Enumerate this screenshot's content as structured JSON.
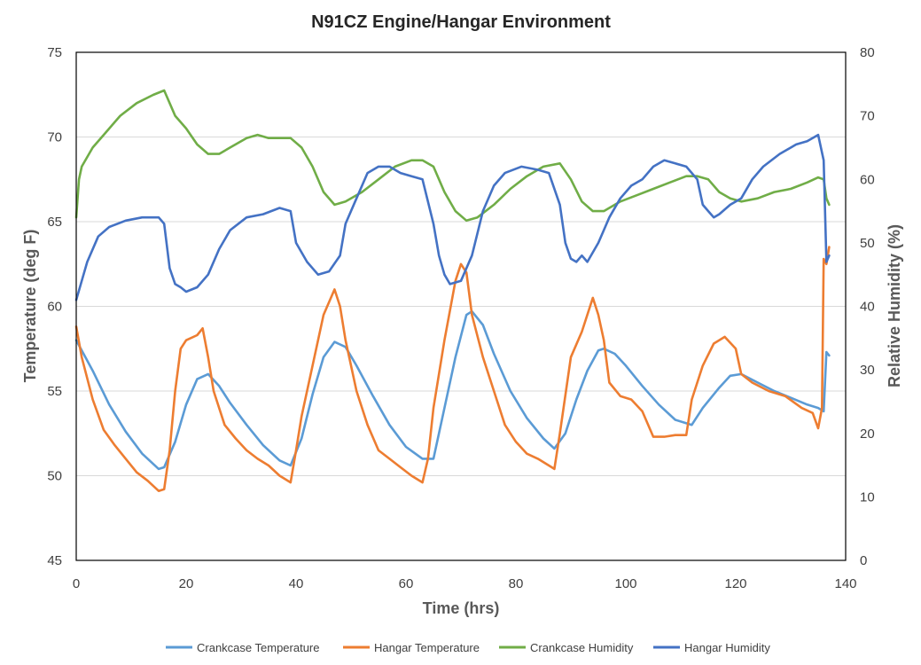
{
  "chart_data": {
    "type": "line",
    "title": "N91CZ Engine/Hangar Environment",
    "xlabel": "Time (hrs)",
    "ylabel_left": "Temperature (deg F)",
    "ylabel_right": "Relative Humidity (%)",
    "xlim": [
      0,
      140
    ],
    "ylim_left": [
      45,
      75
    ],
    "ylim_right": [
      0,
      80
    ],
    "xticks": [
      "0",
      "20",
      "40",
      "60",
      "80",
      "100",
      "120",
      "140"
    ],
    "yticks_left": [
      "45",
      "50",
      "55",
      "60",
      "65",
      "70",
      "75"
    ],
    "yticks_right": [
      "0",
      "10",
      "20",
      "30",
      "40",
      "50",
      "60",
      "70",
      "80"
    ],
    "grid": "horizontal",
    "legend_position": "bottom",
    "series": [
      {
        "name": "Crankcase Temperature",
        "axis": "left",
        "color": "#5b9bd5",
        "points": [
          [
            0,
            58.0
          ],
          [
            3,
            56.2
          ],
          [
            6,
            54.2
          ],
          [
            9,
            52.6
          ],
          [
            12,
            51.3
          ],
          [
            15,
            50.4
          ],
          [
            16,
            50.5
          ],
          [
            18,
            52.0
          ],
          [
            20,
            54.2
          ],
          [
            22,
            55.7
          ],
          [
            24,
            56.0
          ],
          [
            26,
            55.3
          ],
          [
            28,
            54.3
          ],
          [
            31,
            53.0
          ],
          [
            34,
            51.8
          ],
          [
            37,
            50.9
          ],
          [
            39,
            50.6
          ],
          [
            41,
            52.2
          ],
          [
            43,
            54.8
          ],
          [
            45,
            57.0
          ],
          [
            47,
            57.9
          ],
          [
            49,
            57.6
          ],
          [
            51,
            56.5
          ],
          [
            54,
            54.7
          ],
          [
            57,
            53.0
          ],
          [
            60,
            51.7
          ],
          [
            63,
            51.0
          ],
          [
            65,
            51.0
          ],
          [
            67,
            54.0
          ],
          [
            69,
            57.0
          ],
          [
            71,
            59.5
          ],
          [
            72,
            59.7
          ],
          [
            74,
            58.9
          ],
          [
            76,
            57.2
          ],
          [
            79,
            55.0
          ],
          [
            82,
            53.4
          ],
          [
            85,
            52.2
          ],
          [
            87,
            51.6
          ],
          [
            89,
            52.5
          ],
          [
            91,
            54.5
          ],
          [
            93,
            56.2
          ],
          [
            95,
            57.4
          ],
          [
            96,
            57.5
          ],
          [
            98,
            57.2
          ],
          [
            100,
            56.5
          ],
          [
            103,
            55.3
          ],
          [
            106,
            54.2
          ],
          [
            109,
            53.3
          ],
          [
            112,
            53.0
          ],
          [
            114,
            54.0
          ],
          [
            117,
            55.2
          ],
          [
            119,
            55.9
          ],
          [
            121,
            56.0
          ],
          [
            124,
            55.5
          ],
          [
            127,
            55.0
          ],
          [
            130,
            54.6
          ],
          [
            133,
            54.2
          ],
          [
            135,
            54.0
          ],
          [
            136,
            53.8
          ],
          [
            136.5,
            57.3
          ],
          [
            137,
            57.1
          ]
        ]
      },
      {
        "name": "Hangar Temperature",
        "axis": "left",
        "color": "#ed7d31",
        "points": [
          [
            0,
            58.8
          ],
          [
            1,
            57.0
          ],
          [
            3,
            54.5
          ],
          [
            5,
            52.7
          ],
          [
            7,
            51.8
          ],
          [
            9,
            51.0
          ],
          [
            11,
            50.2
          ],
          [
            13,
            49.7
          ],
          [
            15,
            49.1
          ],
          [
            16,
            49.2
          ],
          [
            17,
            51.5
          ],
          [
            18,
            55.0
          ],
          [
            19,
            57.5
          ],
          [
            20,
            58.0
          ],
          [
            22,
            58.3
          ],
          [
            23,
            58.7
          ],
          [
            24,
            57.0
          ],
          [
            25,
            55.0
          ],
          [
            27,
            53.0
          ],
          [
            29,
            52.2
          ],
          [
            31,
            51.5
          ],
          [
            33,
            51.0
          ],
          [
            35,
            50.6
          ],
          [
            37,
            50.0
          ],
          [
            39,
            49.6
          ],
          [
            40,
            51.5
          ],
          [
            41,
            53.5
          ],
          [
            43,
            56.5
          ],
          [
            45,
            59.5
          ],
          [
            47,
            61.0
          ],
          [
            48,
            60.0
          ],
          [
            49,
            58.0
          ],
          [
            51,
            55.0
          ],
          [
            53,
            53.0
          ],
          [
            55,
            51.5
          ],
          [
            57,
            51.0
          ],
          [
            59,
            50.5
          ],
          [
            61,
            50.0
          ],
          [
            63,
            49.6
          ],
          [
            64,
            51.0
          ],
          [
            65,
            54.0
          ],
          [
            67,
            58.0
          ],
          [
            69,
            61.5
          ],
          [
            70,
            62.5
          ],
          [
            71,
            62.0
          ],
          [
            72,
            59.5
          ],
          [
            74,
            57.0
          ],
          [
            76,
            55.0
          ],
          [
            78,
            53.0
          ],
          [
            80,
            52.0
          ],
          [
            82,
            51.3
          ],
          [
            84,
            51.0
          ],
          [
            86,
            50.6
          ],
          [
            87,
            50.4
          ],
          [
            88,
            52.5
          ],
          [
            90,
            57.0
          ],
          [
            92,
            58.5
          ],
          [
            94,
            60.5
          ],
          [
            95,
            59.5
          ],
          [
            96,
            58.0
          ],
          [
            97,
            55.5
          ],
          [
            99,
            54.7
          ],
          [
            101,
            54.5
          ],
          [
            103,
            53.8
          ],
          [
            105,
            52.3
          ],
          [
            107,
            52.3
          ],
          [
            109,
            52.4
          ],
          [
            111,
            52.4
          ],
          [
            112,
            54.5
          ],
          [
            114,
            56.5
          ],
          [
            116,
            57.8
          ],
          [
            118,
            58.2
          ],
          [
            120,
            57.5
          ],
          [
            121,
            56.0
          ],
          [
            123,
            55.5
          ],
          [
            126,
            55.0
          ],
          [
            129,
            54.7
          ],
          [
            132,
            54.0
          ],
          [
            134,
            53.7
          ],
          [
            135,
            52.8
          ],
          [
            135.7,
            54.0
          ],
          [
            136,
            62.8
          ],
          [
            136.5,
            62.5
          ],
          [
            137,
            63.5
          ]
        ]
      },
      {
        "name": "Crankcase Humidity",
        "axis": "right",
        "color": "#70ad47",
        "points": [
          [
            0,
            54
          ],
          [
            0.5,
            60
          ],
          [
            1,
            62
          ],
          [
            3,
            65
          ],
          [
            5,
            67
          ],
          [
            8,
            70
          ],
          [
            11,
            72
          ],
          [
            14,
            73.3
          ],
          [
            16,
            74
          ],
          [
            18,
            70
          ],
          [
            20,
            68
          ],
          [
            22,
            65.5
          ],
          [
            24,
            64
          ],
          [
            26,
            64
          ],
          [
            28,
            65
          ],
          [
            31,
            66.5
          ],
          [
            33,
            67
          ],
          [
            35,
            66.5
          ],
          [
            37,
            66.5
          ],
          [
            39,
            66.5
          ],
          [
            41,
            65
          ],
          [
            43,
            62
          ],
          [
            45,
            58
          ],
          [
            47,
            56
          ],
          [
            49,
            56.5
          ],
          [
            52,
            58
          ],
          [
            55,
            60
          ],
          [
            58,
            62
          ],
          [
            61,
            63
          ],
          [
            63,
            63
          ],
          [
            65,
            62
          ],
          [
            67,
            58
          ],
          [
            69,
            55
          ],
          [
            71,
            53.5
          ],
          [
            73,
            54
          ],
          [
            76,
            56
          ],
          [
            79,
            58.5
          ],
          [
            82,
            60.5
          ],
          [
            85,
            62
          ],
          [
            88,
            62.5
          ],
          [
            90,
            60
          ],
          [
            92,
            56.5
          ],
          [
            94,
            55
          ],
          [
            96,
            55
          ],
          [
            99,
            56.5
          ],
          [
            102,
            57.5
          ],
          [
            105,
            58.5
          ],
          [
            108,
            59.5
          ],
          [
            111,
            60.5
          ],
          [
            113,
            60.5
          ],
          [
            115,
            60
          ],
          [
            117,
            58
          ],
          [
            119,
            57
          ],
          [
            121,
            56.5
          ],
          [
            124,
            57
          ],
          [
            127,
            58
          ],
          [
            130,
            58.5
          ],
          [
            133,
            59.5
          ],
          [
            135,
            60.3
          ],
          [
            136,
            60
          ],
          [
            136.5,
            57
          ],
          [
            137,
            56
          ]
        ]
      },
      {
        "name": "Hangar Humidity",
        "axis": "right",
        "color": "#4472c4",
        "points": [
          [
            0,
            41
          ],
          [
            1,
            44
          ],
          [
            2,
            47
          ],
          [
            4,
            51
          ],
          [
            6,
            52.5
          ],
          [
            9,
            53.5
          ],
          [
            12,
            54
          ],
          [
            15,
            54
          ],
          [
            16,
            53
          ],
          [
            17,
            46
          ],
          [
            18,
            43.5
          ],
          [
            19,
            43
          ],
          [
            20,
            42.3
          ],
          [
            22,
            43
          ],
          [
            24,
            45
          ],
          [
            26,
            49
          ],
          [
            28,
            52
          ],
          [
            31,
            54
          ],
          [
            34,
            54.5
          ],
          [
            37,
            55.5
          ],
          [
            39,
            55
          ],
          [
            40,
            50
          ],
          [
            42,
            47
          ],
          [
            44,
            45
          ],
          [
            46,
            45.5
          ],
          [
            48,
            48
          ],
          [
            49,
            53
          ],
          [
            51,
            57
          ],
          [
            53,
            61
          ],
          [
            55,
            62
          ],
          [
            57,
            62
          ],
          [
            59,
            61
          ],
          [
            61,
            60.5
          ],
          [
            63,
            60
          ],
          [
            65,
            53
          ],
          [
            66,
            48
          ],
          [
            67,
            45
          ],
          [
            68,
            43.5
          ],
          [
            70,
            44
          ],
          [
            72,
            48
          ],
          [
            74,
            55
          ],
          [
            76,
            59
          ],
          [
            78,
            61
          ],
          [
            81,
            62
          ],
          [
            84,
            61.5
          ],
          [
            86,
            61
          ],
          [
            88,
            56
          ],
          [
            89,
            50
          ],
          [
            90,
            47.5
          ],
          [
            91,
            47
          ],
          [
            92,
            48
          ],
          [
            93,
            47
          ],
          [
            95,
            50
          ],
          [
            97,
            54
          ],
          [
            99,
            57
          ],
          [
            101,
            59
          ],
          [
            103,
            60
          ],
          [
            105,
            62
          ],
          [
            107,
            63
          ],
          [
            109,
            62.5
          ],
          [
            111,
            62
          ],
          [
            113,
            60
          ],
          [
            114,
            56
          ],
          [
            115,
            55
          ],
          [
            116,
            54
          ],
          [
            117,
            54.5
          ],
          [
            119,
            56
          ],
          [
            121,
            57
          ],
          [
            123,
            60
          ],
          [
            125,
            62
          ],
          [
            128,
            64
          ],
          [
            131,
            65.5
          ],
          [
            133,
            66
          ],
          [
            135,
            67
          ],
          [
            136,
            63
          ],
          [
            136.5,
            47
          ],
          [
            137,
            48
          ]
        ]
      }
    ]
  }
}
